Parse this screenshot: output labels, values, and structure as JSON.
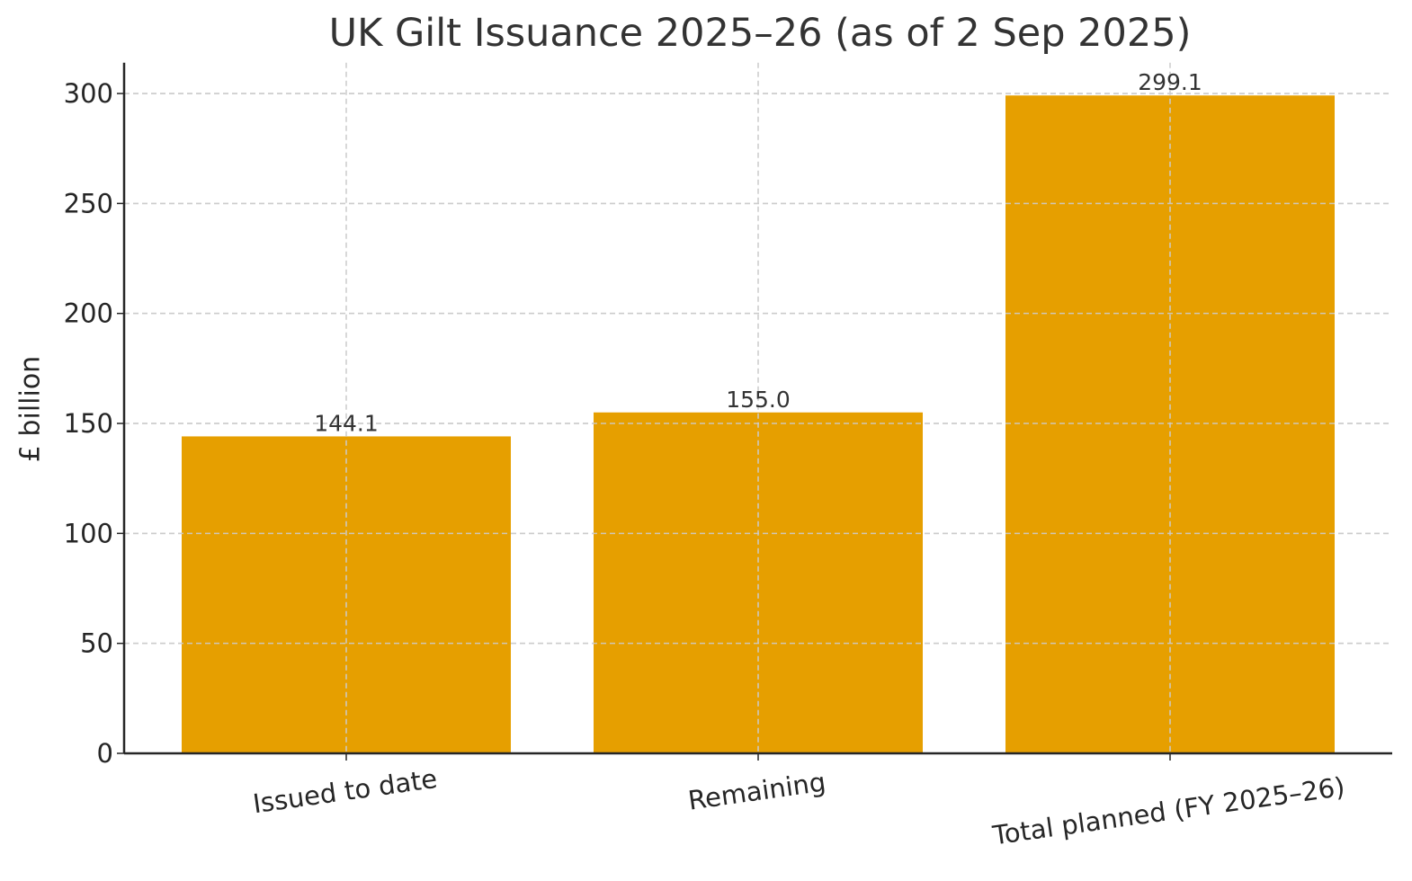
{
  "chart_data": {
    "type": "bar",
    "title": "UK Gilt Issuance 2025–26 (as of 2 Sep 2025)",
    "xlabel": "",
    "ylabel": "£ billion",
    "categories": [
      "Issued to date",
      "Remaining",
      "Total planned (FY 2025–26)"
    ],
    "values": [
      144.1,
      155.0,
      299.1
    ],
    "data_labels": [
      "144.1",
      "155.0",
      "299.1"
    ],
    "ylim": [
      0,
      314
    ],
    "yticks": [
      0,
      50,
      100,
      150,
      200,
      250,
      300
    ],
    "grid": true,
    "grid_style": "dashed",
    "bar_color": "#E69F00",
    "legend": null
  }
}
